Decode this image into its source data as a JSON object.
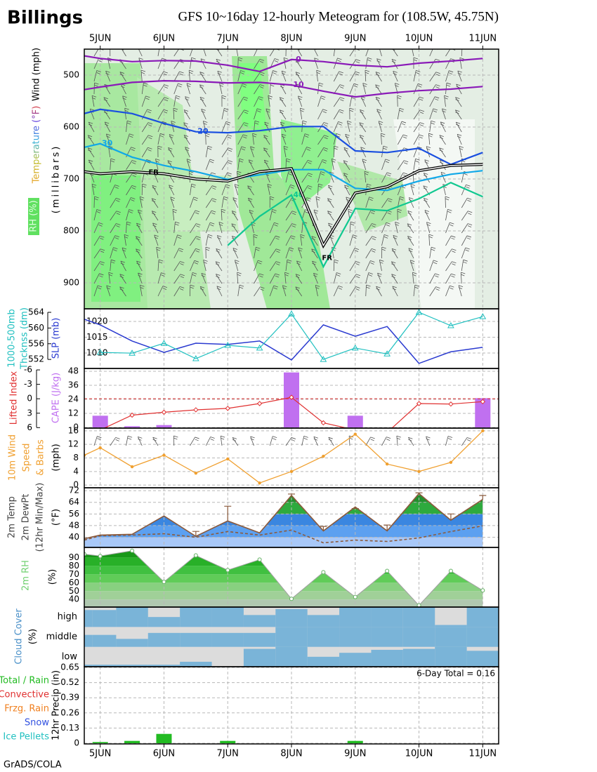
{
  "header": {
    "station": "Billings",
    "title": "GFS 10~16day 12-hourly Meteogram for (108.5W, 45.75N)",
    "footer": "GrADS/COLA"
  },
  "chart_data": [
    {
      "type": "contour",
      "wind_label": "Wind (mph)",
      "temp_label": "Temperature (°F)",
      "ylabel": "(millibars)",
      "rh_label": "RH (%)",
      "x": [
        -6,
        0,
        12,
        24,
        36,
        48,
        60,
        72,
        84,
        96,
        108,
        120,
        132,
        144
      ],
      "xlim": [
        -6,
        150
      ],
      "xticks": [
        {
          "value": 0,
          "label": "5JUN"
        },
        {
          "value": 24,
          "label": "6JUN"
        },
        {
          "value": 48,
          "label": "7JUN"
        },
        {
          "value": 72,
          "label": "8JUN"
        },
        {
          "value": 96,
          "label": "9JUN"
        },
        {
          "value": 120,
          "label": "10JUN"
        },
        {
          "value": 144,
          "label": "11JUN"
        }
      ],
      "ylim": [
        950,
        450
      ],
      "yticks": [
        500,
        600,
        700,
        800,
        900
      ],
      "series": [
        {
          "name": "0",
          "color": "#8a1ab8",
          "values": [
            463,
            468,
            474,
            472,
            473,
            481,
            493,
            470,
            474,
            481,
            484,
            477,
            473,
            468
          ]
        },
        {
          "name": "10",
          "color": "#8a1ab8",
          "values": [
            528,
            523,
            514,
            511,
            512,
            515,
            514,
            519,
            531,
            542,
            535,
            530,
            527,
            522
          ]
        },
        {
          "name": "20",
          "color": "#1a4fe0",
          "values": [
            574,
            566,
            574,
            593,
            609,
            611,
            607,
            599,
            599,
            646,
            649,
            641,
            672,
            649
          ]
        },
        {
          "name": "30",
          "color": "#10a8e8",
          "values": [
            639,
            632,
            658,
            674,
            686,
            701,
            692,
            682,
            682,
            718,
            722,
            704,
            691,
            684
          ]
        },
        {
          "name": "40",
          "color": "#10c890",
          "values": [
            null,
            null,
            null,
            null,
            null,
            828,
            772,
            731,
            869,
            757,
            761,
            738,
            707,
            734
          ]
        }
      ],
      "freezing_level": {
        "name": "FR",
        "values": [
          686,
          690,
          686,
          690,
          700,
          704,
          686,
          680,
          828,
          727,
          715,
          684,
          674,
          672
        ]
      }
    },
    {
      "type": "line",
      "x": [
        -6,
        0,
        12,
        24,
        36,
        48,
        60,
        72,
        84,
        96,
        108,
        120,
        132,
        144
      ],
      "xlim": [
        -6,
        150
      ],
      "ylim": [
        549.7,
        564.9
      ],
      "yticks": [
        552,
        556,
        560,
        564
      ],
      "y2lim": [
        1005.1,
        1024
      ],
      "y2ticks": [
        1010,
        1015,
        1020
      ],
      "series": [
        {
          "label_lines": [
            "1000-500mb",
            "Thcknss (dm)"
          ],
          "color": "#20c0c0",
          "axis": "y",
          "values": [
            null,
            553.8,
            553.6,
            556.1,
            552.2,
            555.6,
            554.9,
            563.6,
            552,
            554.9,
            553.4,
            564,
            560.6,
            562.9
          ]
        },
        {
          "name": "SLP (mb)",
          "color": "#2a3ad0",
          "axis": "y2",
          "values": [
            1020.7,
            1018.9,
            1013.8,
            1010.2,
            1013.1,
            1012.7,
            1013.8,
            1007.8,
            1018.9,
            1015.3,
            1018.4,
            1006.7,
            1010.4,
            1011.8
          ]
        }
      ]
    },
    {
      "type": "bar-line",
      "x": [
        -6,
        0,
        12,
        24,
        36,
        48,
        60,
        72,
        84,
        96,
        108,
        120,
        132,
        144
      ],
      "xlim": [
        -6,
        150
      ],
      "ylim": [
        6.1,
        -6.3
      ],
      "yticks": [
        6,
        3,
        0,
        -3,
        -6
      ],
      "y2lim": [
        -0.6,
        50.4
      ],
      "y2ticks": [
        0,
        12,
        24,
        36,
        48
      ],
      "series": [
        {
          "name": "Lifted Index",
          "color": "#e03030",
          "axis": "y",
          "values": [
            null,
            6.5,
            3.4,
            2.8,
            2.3,
            2,
            1,
            -0.3,
            5,
            6.5,
            7,
            1,
            1.1,
            0.6
          ]
        },
        {
          "name": "CAPE (J/kg)",
          "color": "#c070f0",
          "axis": "y2",
          "values": [
            null,
            10,
            1,
            2,
            0,
            0,
            0,
            47,
            0,
            10,
            0,
            0,
            0,
            25
          ]
        }
      ]
    },
    {
      "type": "line",
      "x": [
        -6,
        0,
        12,
        24,
        36,
        48,
        60,
        72,
        84,
        96,
        108,
        120,
        132,
        144
      ],
      "xlim": [
        -6,
        150
      ],
      "ylabel_lines": [
        "10m Wind",
        "Speed",
        "& Barbs"
      ],
      "unit": "(mph)",
      "color": "#f0a030",
      "ylim": [
        -0.8,
        16.8
      ],
      "yticks": [
        0,
        4,
        8,
        12,
        16
      ],
      "values": [
        8.8,
        11,
        5.4,
        8.8,
        3.5,
        7.7,
        0.6,
        4,
        8.5,
        15,
        6.2,
        4,
        6.7,
        16
      ]
    },
    {
      "type": "temperature",
      "x": [
        -6,
        0,
        12,
        24,
        36,
        48,
        60,
        72,
        84,
        96,
        108,
        120,
        132,
        144
      ],
      "xlim": [
        -6,
        150
      ],
      "ylabel_lines": [
        "2m Temp",
        "2m DewPt",
        "(12hr Min/Max)"
      ],
      "unit": "(°F)",
      "ylim": [
        33,
        74
      ],
      "yticks": [
        40,
        48,
        56,
        64,
        72
      ],
      "series": [
        {
          "name": "2m Temp",
          "color": "#8b5a3c",
          "values": [
            39,
            41.5,
            42,
            54.6,
            40.6,
            51.2,
            43,
            68.7,
            44.4,
            60.8,
            44.4,
            70,
            51.7,
            66
          ]
        },
        {
          "name": "2m DewPt",
          "color": "#8b5a3c",
          "values": [
            38,
            41,
            41.5,
            42.4,
            40,
            43.9,
            41.5,
            44.9,
            36.2,
            38,
            37.1,
            39.5,
            43.9,
            47.8
          ]
        },
        {
          "name": "12hr Max",
          "color": "#8b5a3c",
          "values": [
            null,
            null,
            null,
            null,
            44,
            61.3,
            null,
            69.7,
            47.4,
            59.7,
            48.4,
            70.5,
            56,
            68.7
          ]
        }
      ]
    },
    {
      "type": "area",
      "x": [
        -6,
        0,
        12,
        24,
        36,
        48,
        60,
        72,
        84,
        96,
        108,
        120,
        132,
        144
      ],
      "xlim": [
        -6,
        150
      ],
      "ylabel": "2m RH",
      "unit": "(%)",
      "ylim": [
        31,
        102
      ],
      "yticks": [
        40,
        50,
        60,
        70,
        80,
        90
      ],
      "values": [
        94,
        91.7,
        98,
        61,
        92.5,
        75,
        87.5,
        40.8,
        72.5,
        43,
        74,
        33,
        74,
        50.8
      ]
    },
    {
      "type": "cloud",
      "x": [
        -6,
        0,
        12,
        24,
        36,
        48,
        60,
        72,
        84,
        96,
        108,
        120,
        132,
        144
      ],
      "xlim": [
        -6,
        150
      ],
      "ylabel": "Cloud Cover",
      "unit": "(%)",
      "color": "#7ab4d8",
      "layers": [
        {
          "name": "high",
          "values": [
            85,
            85,
            100,
            50,
            100,
            100,
            60,
            90,
            60,
            100,
            100,
            100,
            10,
            100
          ]
        },
        {
          "name": "middle",
          "values": [
            60,
            60,
            40,
            70,
            70,
            70,
            70,
            100,
            100,
            100,
            100,
            100,
            100,
            100
          ]
        },
        {
          "name": "low",
          "values": [
            10,
            10,
            10,
            10,
            25,
            0,
            90,
            100,
            50,
            70,
            85,
            90,
            100,
            80
          ]
        }
      ]
    },
    {
      "type": "bar",
      "x": [
        -6,
        0,
        12,
        24,
        36,
        48,
        60,
        72,
        84,
        96,
        108,
        120,
        132,
        144
      ],
      "xlim": [
        -6,
        150
      ],
      "xticks": [
        {
          "value": 0,
          "label": "5JUN"
        },
        {
          "value": 24,
          "label": "6JUN"
        },
        {
          "value": 48,
          "label": "7JUN"
        },
        {
          "value": 72,
          "label": "8JUN"
        },
        {
          "value": 96,
          "label": "9JUN"
        },
        {
          "value": 120,
          "label": "10JUN"
        },
        {
          "value": 144,
          "label": "11JUN"
        }
      ],
      "ylabel": "12hr Precip (in)",
      "annotation": "6-Day Total = 0.16",
      "color": "#22bb22",
      "ylim": [
        -0.006,
        0.656
      ],
      "yticks": [
        0,
        0.13,
        0.26,
        0.39,
        0.52,
        0.65
      ],
      "values": [
        null,
        0.01,
        0.02,
        0.08,
        0,
        0.02,
        0,
        0,
        0,
        0.02,
        0,
        0,
        0,
        0
      ],
      "legend": [
        {
          "name": "Total / Rain",
          "color": "#22bb22"
        },
        {
          "name": "Convective",
          "color": "#e03030"
        },
        {
          "name": "Frzg. Rain",
          "color": "#f08020"
        },
        {
          "name": "Snow",
          "color": "#3050e0"
        },
        {
          "name": "Ice Pellets",
          "color": "#20c0c0"
        }
      ]
    }
  ]
}
